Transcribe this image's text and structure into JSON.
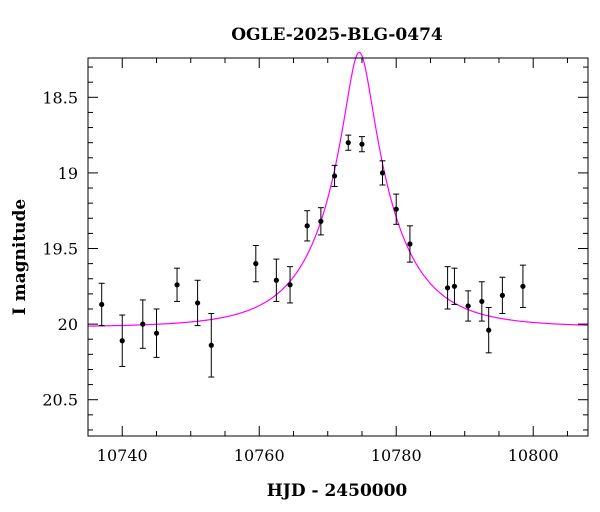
{
  "chart_data": {
    "type": "scatter",
    "title": "OGLE-2025-BLG-0474",
    "xlabel": "HJD - 2450000",
    "ylabel": "I magnitude",
    "xlim": [
      10735,
      10808
    ],
    "ylim": [
      20.74,
      18.24
    ],
    "y_inverted": true,
    "x_ticks": [
      10740,
      10760,
      10780,
      10800
    ],
    "y_ticks": [
      18.5,
      19,
      19.5,
      20,
      20.5
    ],
    "x_tick_labels": [
      "10740",
      "10760",
      "10780",
      "10800"
    ],
    "y_tick_labels": [
      "18.5",
      "19",
      "19.5",
      "20",
      "20.5"
    ],
    "grid": false,
    "series": [
      {
        "kind": "points_with_error_bars",
        "color": "#000000",
        "points": [
          {
            "x": 10737.0,
            "y": 19.87,
            "err": 0.14
          },
          {
            "x": 10740.0,
            "y": 20.11,
            "err": 0.17
          },
          {
            "x": 10743.0,
            "y": 20.0,
            "err": 0.16
          },
          {
            "x": 10745.0,
            "y": 20.06,
            "err": 0.16
          },
          {
            "x": 10748.0,
            "y": 19.74,
            "err": 0.11
          },
          {
            "x": 10751.0,
            "y": 19.86,
            "err": 0.15
          },
          {
            "x": 10753.0,
            "y": 20.14,
            "err": 0.21
          },
          {
            "x": 10759.5,
            "y": 19.6,
            "err": 0.12
          },
          {
            "x": 10762.5,
            "y": 19.71,
            "err": 0.14
          },
          {
            "x": 10764.5,
            "y": 19.74,
            "err": 0.12
          },
          {
            "x": 10767.0,
            "y": 19.35,
            "err": 0.1
          },
          {
            "x": 10769.0,
            "y": 19.32,
            "err": 0.09
          },
          {
            "x": 10771.0,
            "y": 19.02,
            "err": 0.07
          },
          {
            "x": 10773.0,
            "y": 18.8,
            "err": 0.05
          },
          {
            "x": 10775.0,
            "y": 18.81,
            "err": 0.05
          },
          {
            "x": 10778.0,
            "y": 19.0,
            "err": 0.08
          },
          {
            "x": 10780.0,
            "y": 19.24,
            "err": 0.1
          },
          {
            "x": 10782.0,
            "y": 19.47,
            "err": 0.12
          },
          {
            "x": 10787.5,
            "y": 19.76,
            "err": 0.14
          },
          {
            "x": 10788.5,
            "y": 19.75,
            "err": 0.12
          },
          {
            "x": 10790.5,
            "y": 19.88,
            "err": 0.1
          },
          {
            "x": 10792.5,
            "y": 19.85,
            "err": 0.13
          },
          {
            "x": 10793.5,
            "y": 20.04,
            "err": 0.15
          },
          {
            "x": 10795.5,
            "y": 19.81,
            "err": 0.12
          },
          {
            "x": 10798.5,
            "y": 19.75,
            "err": 0.14
          }
        ]
      },
      {
        "kind": "model_curve",
        "color": "#ff00ff",
        "model": {
          "type": "paczynski",
          "baseline_mag": 20.02,
          "t0": 10774.6,
          "tE": 10.0,
          "u0": 0.19
        }
      }
    ]
  }
}
